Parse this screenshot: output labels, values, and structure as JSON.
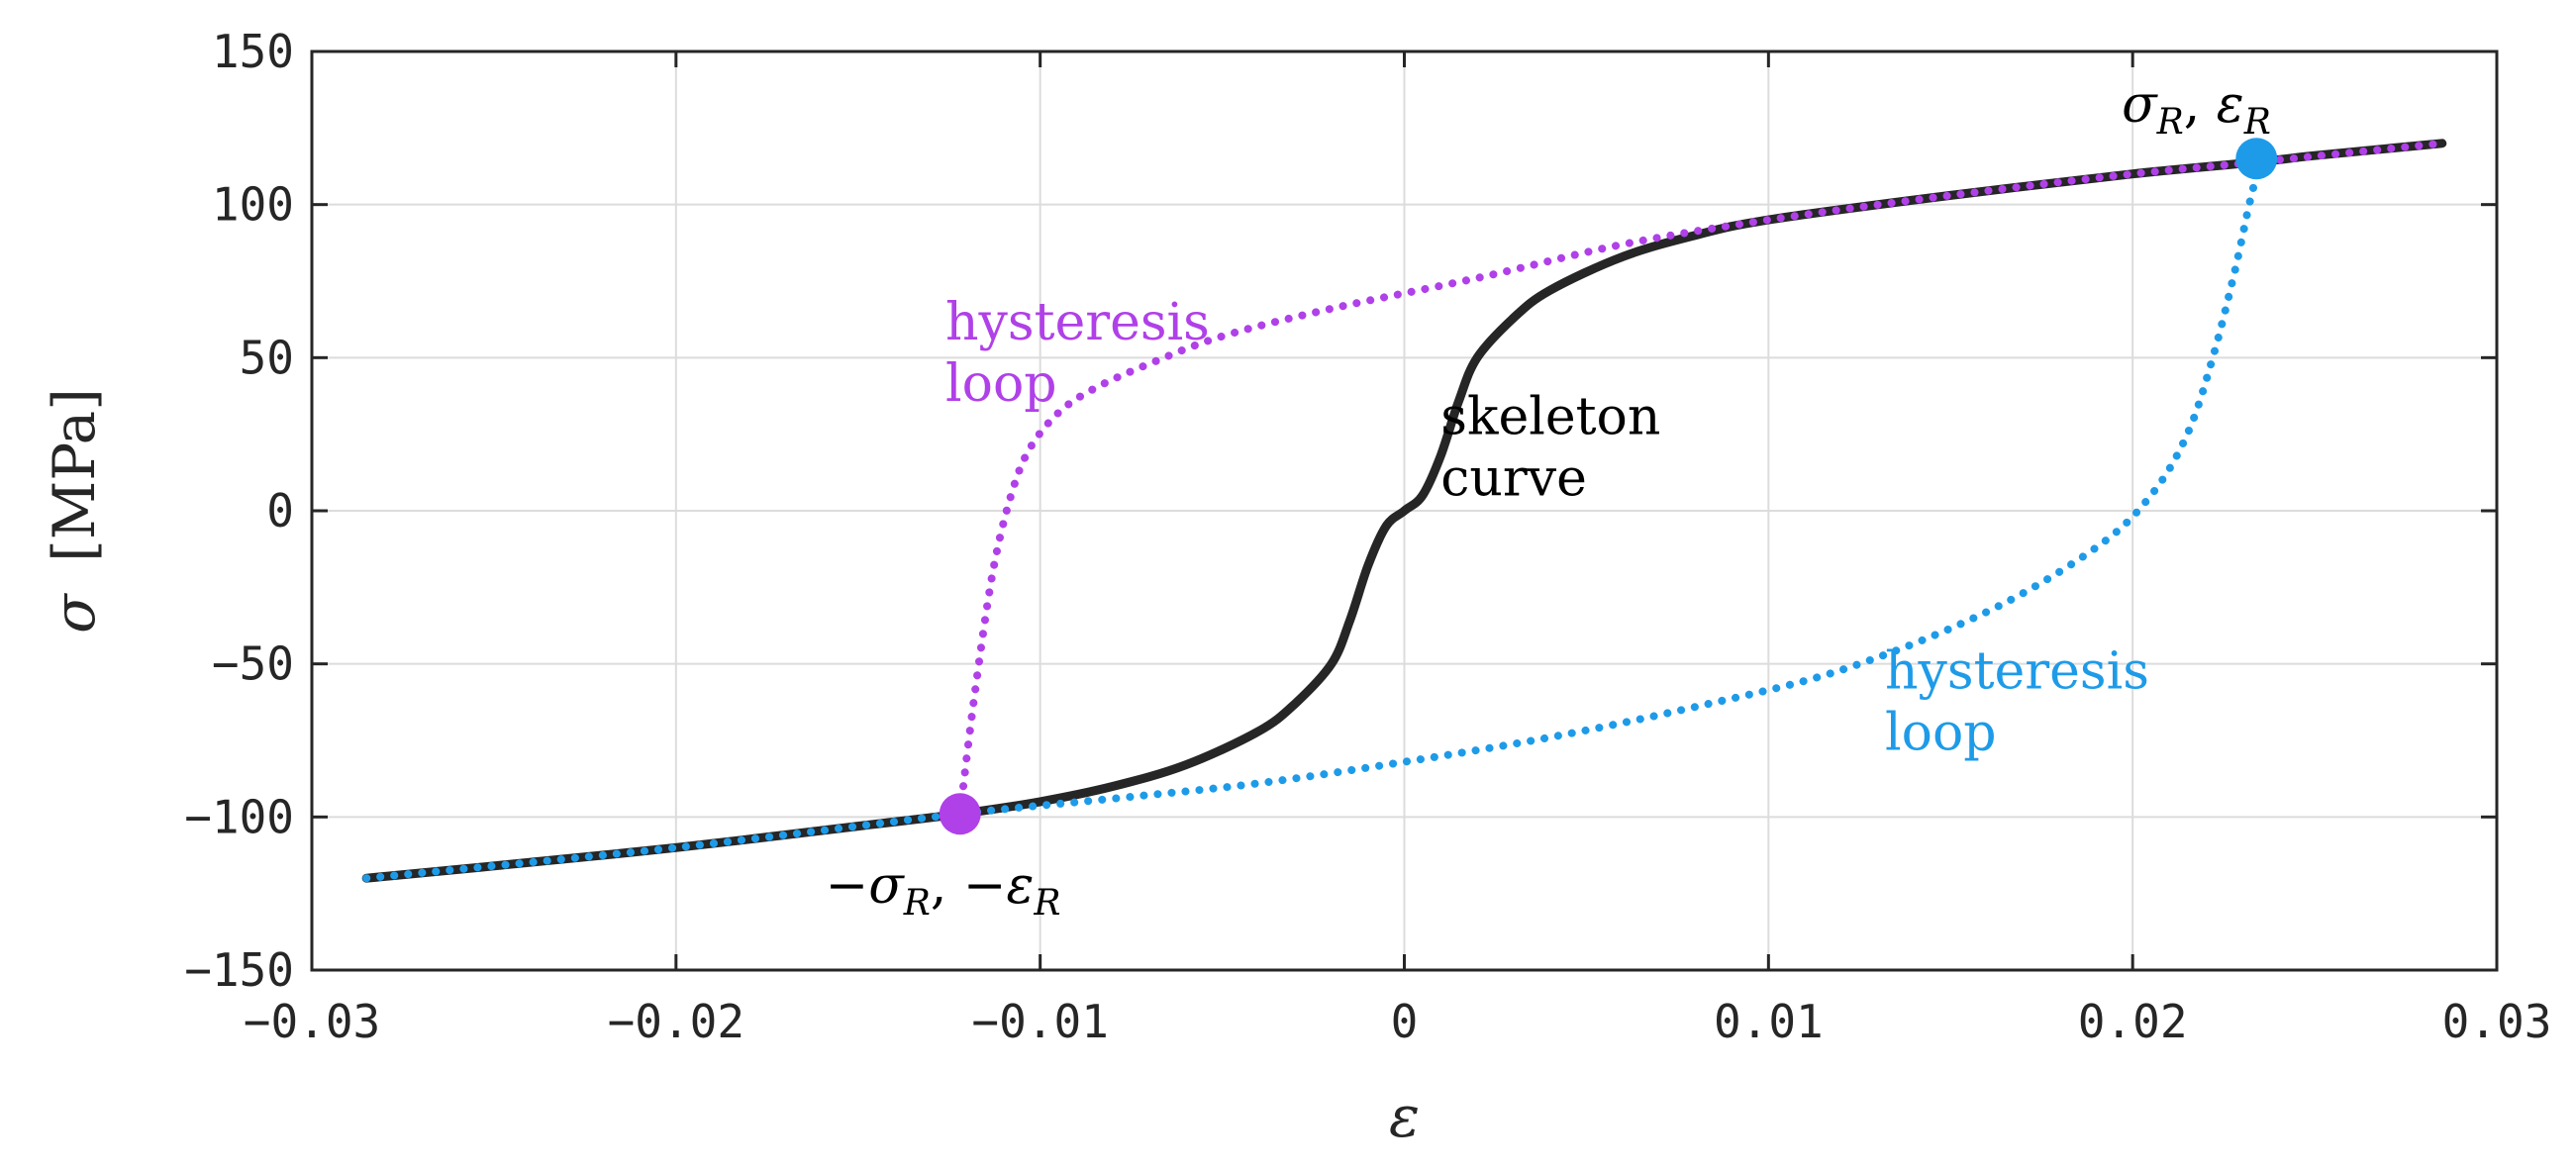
{
  "chart_data": {
    "type": "line",
    "title": "",
    "xlabel": "ε",
    "ylabel": {
      "symbol": "σ",
      "unit": "[MPa]"
    },
    "xlim": [
      -0.03,
      0.03
    ],
    "ylim": [
      -150,
      150
    ],
    "x_ticks": [
      -0.03,
      -0.02,
      -0.01,
      0,
      0.01,
      0.02,
      0.03
    ],
    "x_tick_labels": [
      "−0.03",
      "−0.02",
      "−0.01",
      "0",
      "0.01",
      "0.02",
      "0.03"
    ],
    "y_ticks": [
      150,
      100,
      50,
      0,
      -50,
      -100,
      -150
    ],
    "y_tick_labels": [
      "150",
      "100",
      "50",
      "0",
      "−50",
      "−100",
      "−150"
    ],
    "grid": true,
    "series": [
      {
        "name": "skeleton curve",
        "color": "#262626",
        "style": "solid",
        "x": [
          -0.0285,
          -0.025,
          -0.02,
          -0.015,
          -0.0122,
          -0.01,
          -0.008,
          -0.006,
          -0.004,
          -0.003,
          -0.002,
          -0.0015,
          -0.001,
          -0.0005,
          0,
          0.0005,
          0.001,
          0.0015,
          0.002,
          0.003,
          0.004,
          0.006,
          0.008,
          0.01,
          0.015,
          0.02,
          0.0235,
          0.025,
          0.0285
        ],
        "y": [
          -120,
          -116,
          -110,
          -103,
          -99,
          -95,
          -90,
          -83,
          -72,
          -63,
          -50,
          -36,
          -18,
          -5,
          0,
          5,
          18,
          36,
          50,
          63,
          72,
          83,
          90,
          95,
          103,
          110,
          114,
          116,
          120
        ]
      },
      {
        "name": "hysteresis loop (purple)",
        "color": "#b040e8",
        "style": "dotted",
        "x": [
          -0.0122,
          -0.0118,
          -0.0113,
          -0.0108,
          -0.0103,
          -0.0095,
          -0.0085,
          -0.007,
          -0.005,
          -0.002,
          0.002,
          0.006,
          0.01,
          0.015,
          0.02,
          0.0235,
          0.0285
        ],
        "y": [
          -99,
          -60,
          -20,
          5,
          20,
          32,
          40,
          48,
          57,
          66,
          76,
          87,
          95,
          103,
          110,
          114,
          120
        ]
      },
      {
        "name": "hysteresis loop (blue)",
        "color": "#1e9be8",
        "style": "dotted",
        "x": [
          -0.0285,
          -0.02,
          -0.0122,
          -0.008,
          -0.004,
          0,
          0.004,
          0.008,
          0.012,
          0.016,
          0.019,
          0.0205,
          0.0215,
          0.0222,
          0.0228,
          0.0232,
          0.0235
        ],
        "y": [
          -120,
          -110,
          -99,
          -94,
          -89,
          -82,
          -74,
          -64,
          -52,
          -33,
          -12,
          5,
          25,
          50,
          78,
          100,
          114
        ]
      }
    ],
    "points": [
      {
        "name": "σR, εR",
        "x": 0.0234,
        "y": 115,
        "color": "#1e9be8"
      },
      {
        "name": "−σR, −εR",
        "x": -0.0122,
        "y": -99,
        "color": "#b040e8"
      }
    ],
    "annotations": [
      {
        "id": "skeleton",
        "lines": [
          "skeleton",
          "curve"
        ],
        "color": "#000000",
        "x": 0.001,
        "y": 25
      },
      {
        "id": "purple-loop",
        "lines": [
          "hysteresis",
          "loop"
        ],
        "color": "#b040e8",
        "x": -0.0126,
        "y": 56
      },
      {
        "id": "blue-loop",
        "lines": [
          "hysteresis",
          "loop"
        ],
        "color": "#1e9be8",
        "x": 0.0132,
        "y": -58
      }
    ],
    "point_labels": [
      {
        "id": "pos",
        "main1": "σ",
        "sub1": "R",
        "sep": ", ",
        "main2": "ε",
        "sub2": "R",
        "x": 0.0197,
        "y": 127
      },
      {
        "id": "neg",
        "main1": "−σ",
        "sub1": "R",
        "sep": ", −",
        "main2": "ε",
        "sub2": "R",
        "x": -0.0159,
        "y": -128
      }
    ]
  }
}
